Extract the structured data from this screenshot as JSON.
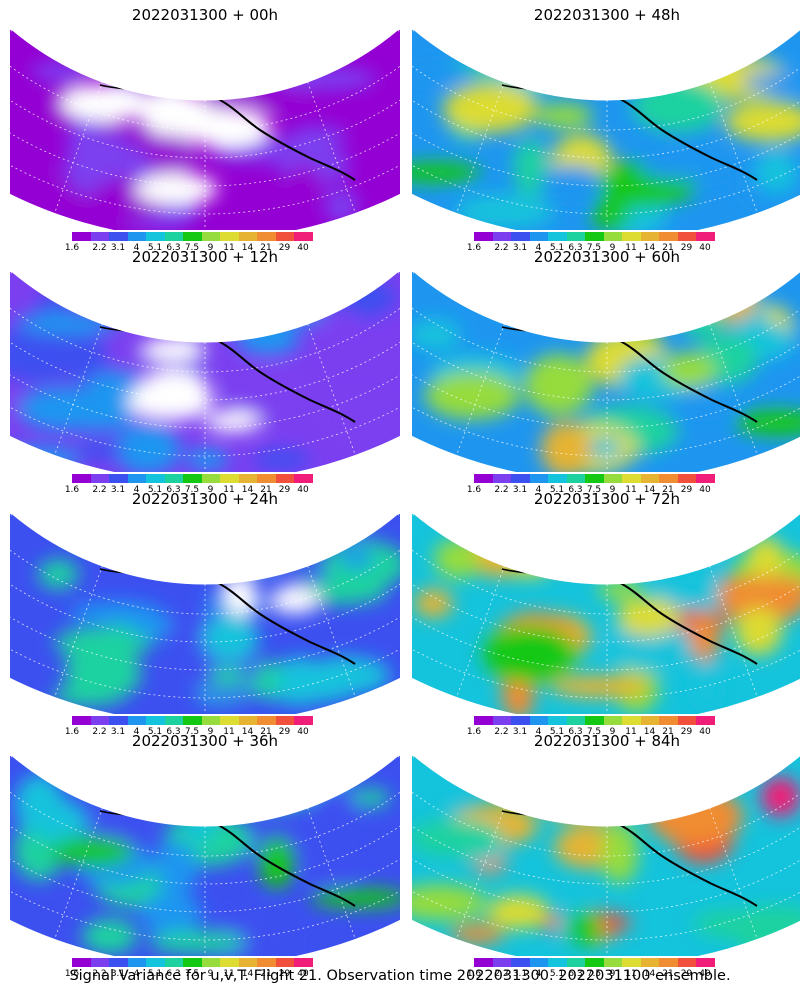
{
  "chart_data": {
    "type": "heatmap",
    "footer": "Signal Variance for u,v,T. Flight 21. Observation time 2022031300. 2022031100 ensemble.",
    "colorbar": {
      "ticks": [
        "1.6",
        "2.2",
        "3.1",
        "4",
        "5.1",
        "6.3",
        "7.5",
        "9",
        "11",
        "14",
        "21",
        "29",
        "40"
      ],
      "colors": [
        "#9400d3",
        "#7b3ff0",
        "#3c50f0",
        "#1e96f0",
        "#14c3dc",
        "#1ed2a0",
        "#14c814",
        "#96dc3c",
        "#dcdc32",
        "#e6b432",
        "#f08c32",
        "#f0503c",
        "#f01e78"
      ]
    },
    "panels": [
      {
        "title": "2022031300 + 00h",
        "hour": 0
      },
      {
        "title": "2022031300 + 48h",
        "hour": 48
      },
      {
        "title": "2022031300 + 12h",
        "hour": 12
      },
      {
        "title": "2022031300 + 60h",
        "hour": 60
      },
      {
        "title": "2022031300 + 24h",
        "hour": 24
      },
      {
        "title": "2022031300 + 72h",
        "hour": 72
      },
      {
        "title": "2022031300 + 36h",
        "hour": 36
      },
      {
        "title": "2022031300 + 84h",
        "hour": 84
      }
    ]
  }
}
